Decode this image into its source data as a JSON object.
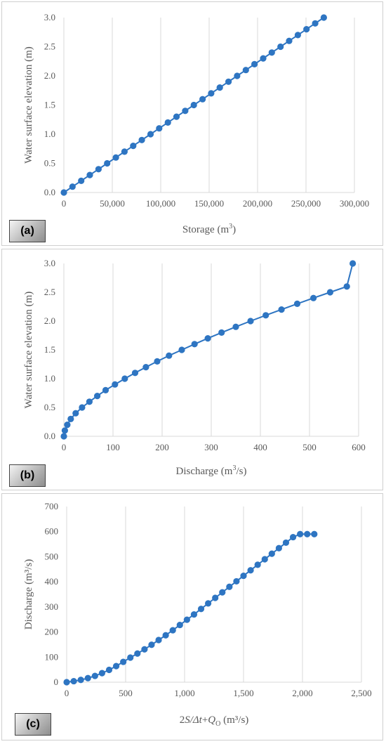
{
  "chart_data": [
    {
      "type": "line",
      "panel_label": "(a)",
      "xlabel": "Storage (m",
      "xlabel_sup": "3",
      "xlabel_tail": ")",
      "ylabel": "Water surface elevation  (m)",
      "xlim": [
        0,
        300000
      ],
      "ylim": [
        0,
        3
      ],
      "xticks": [
        0,
        50000,
        100000,
        150000,
        200000,
        250000,
        300000
      ],
      "xtick_labels": [
        "0",
        "50,000",
        "100,000",
        "150,000",
        "200,000",
        "250,000",
        "300,000"
      ],
      "yticks": [
        0,
        0.5,
        1,
        1.5,
        2,
        2.5,
        3
      ],
      "ytick_labels": [
        "0.0",
        "0.5",
        "1.0",
        "1.5",
        "2.0",
        "2.5",
        "3.0"
      ],
      "grid": "vertical",
      "color": "#2e75c2",
      "series": [
        {
          "x": [
            0,
            8900,
            17900,
            26800,
            35800,
            44700,
            53700,
            62600,
            71600,
            80500,
            89500,
            98400,
            107400,
            116300,
            125300,
            134200,
            143200,
            152100,
            161000,
            170000,
            178900,
            187900,
            196800,
            205800,
            214700,
            223700,
            232600,
            241600,
            250500,
            259500,
            268400
          ],
          "y": [
            0,
            0.1,
            0.2,
            0.3,
            0.4,
            0.5,
            0.6,
            0.7,
            0.8,
            0.9,
            1.0,
            1.1,
            1.2,
            1.3,
            1.4,
            1.5,
            1.6,
            1.7,
            1.8,
            1.9,
            2.0,
            2.1,
            2.2,
            2.3,
            2.4,
            2.5,
            2.6,
            2.7,
            2.8,
            2.9,
            3.0
          ]
        }
      ]
    },
    {
      "type": "line",
      "panel_label": "(b)",
      "xlabel": "Discharge (m",
      "xlabel_sup": "3",
      "xlabel_tail": "/s)",
      "ylabel": "Water surface elevation  (m)",
      "xlim": [
        0,
        600
      ],
      "ylim": [
        0,
        3
      ],
      "xticks": [
        0,
        100,
        200,
        300,
        400,
        500,
        600
      ],
      "xtick_labels": [
        "0",
        "100",
        "200",
        "300",
        "400",
        "500",
        "600"
      ],
      "yticks": [
        0,
        0.5,
        1,
        1.5,
        2,
        2.5,
        3
      ],
      "ytick_labels": [
        "0.0",
        "0.5",
        "1.0",
        "1.5",
        "2.0",
        "2.5",
        "3.0"
      ],
      "grid": "vertical",
      "color": "#2e75c2",
      "series": [
        {
          "x": [
            0,
            2,
            7,
            14,
            24,
            37,
            52,
            68,
            85,
            104,
            124,
            145,
            167,
            190,
            214,
            240,
            266,
            293,
            321,
            350,
            380,
            411,
            443,
            475,
            508,
            542,
            576,
            588
          ],
          "y": [
            0,
            0.1,
            0.2,
            0.3,
            0.4,
            0.5,
            0.6,
            0.7,
            0.8,
            0.9,
            1.0,
            1.1,
            1.2,
            1.3,
            1.4,
            1.5,
            1.6,
            1.7,
            1.8,
            1.9,
            2.0,
            2.1,
            2.2,
            2.3,
            2.4,
            2.5,
            2.6,
            3.0
          ]
        }
      ]
    },
    {
      "type": "line",
      "panel_label": "(c)",
      "xlabel": "2S/Δt+Q",
      "xlabel_sub": "O",
      "xlabel_tail": " (m³/s)",
      "ylabel": "Discharge (m³/s)",
      "xlim": [
        0,
        2500
      ],
      "ylim": [
        0,
        700
      ],
      "xticks": [
        0,
        500,
        1000,
        1500,
        2000,
        2500
      ],
      "xtick_labels": [
        "0",
        "500",
        "1,000",
        "1,500",
        "2,000",
        "2,500"
      ],
      "yticks": [
        0,
        100,
        200,
        300,
        400,
        500,
        600,
        700
      ],
      "ytick_labels": [
        "0",
        "100",
        "200",
        "300",
        "400",
        "500",
        "600",
        "700"
      ],
      "grid": "vertical",
      "color": "#2e75c2",
      "series": [
        {
          "x": [
            0,
            60,
            120,
            180,
            240,
            300,
            360,
            420,
            480,
            540,
            600,
            660,
            720,
            780,
            840,
            900,
            960,
            1020,
            1080,
            1140,
            1200,
            1260,
            1320,
            1380,
            1440,
            1500,
            1560,
            1620,
            1680,
            1740,
            1800,
            1860,
            1920,
            1980,
            2040,
            2100
          ],
          "y": [
            0,
            4,
            9,
            16,
            25,
            36,
            49,
            64,
            81,
            98,
            114,
            131,
            149,
            168,
            187,
            207,
            228,
            249,
            270,
            292,
            314,
            336,
            358,
            380,
            402,
            424,
            446,
            468,
            490,
            512,
            534,
            556,
            578,
            590,
            590,
            590
          ]
        }
      ]
    }
  ]
}
